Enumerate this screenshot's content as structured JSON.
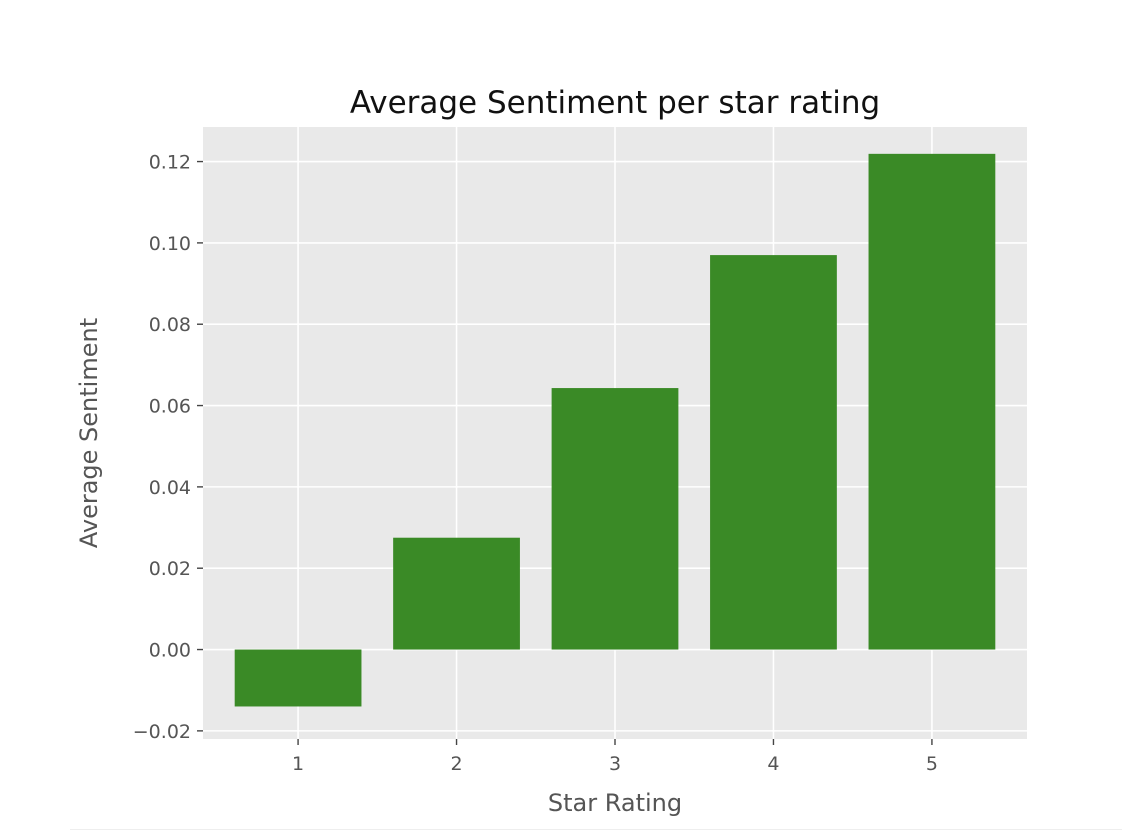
{
  "chart_data": {
    "type": "bar",
    "title": "Average Sentiment per star rating",
    "xlabel": "Star Rating",
    "ylabel": "Average Sentiment",
    "categories": [
      "1",
      "2",
      "3",
      "4",
      "5"
    ],
    "values": [
      -0.014,
      0.0275,
      0.0643,
      0.097,
      0.1219
    ],
    "ylim": [
      -0.022,
      0.1285
    ],
    "yticks": [
      -0.02,
      0.0,
      0.02,
      0.04,
      0.06,
      0.08,
      0.1,
      0.12
    ],
    "ytick_labels": [
      "−0.02",
      "0.00",
      "0.02",
      "0.04",
      "0.06",
      "0.08",
      "0.10",
      "0.12"
    ],
    "grid": true,
    "colors": {
      "bar": "#3a8a26",
      "plot_background": "#e9e9e9",
      "grid": "#ffffff"
    }
  }
}
